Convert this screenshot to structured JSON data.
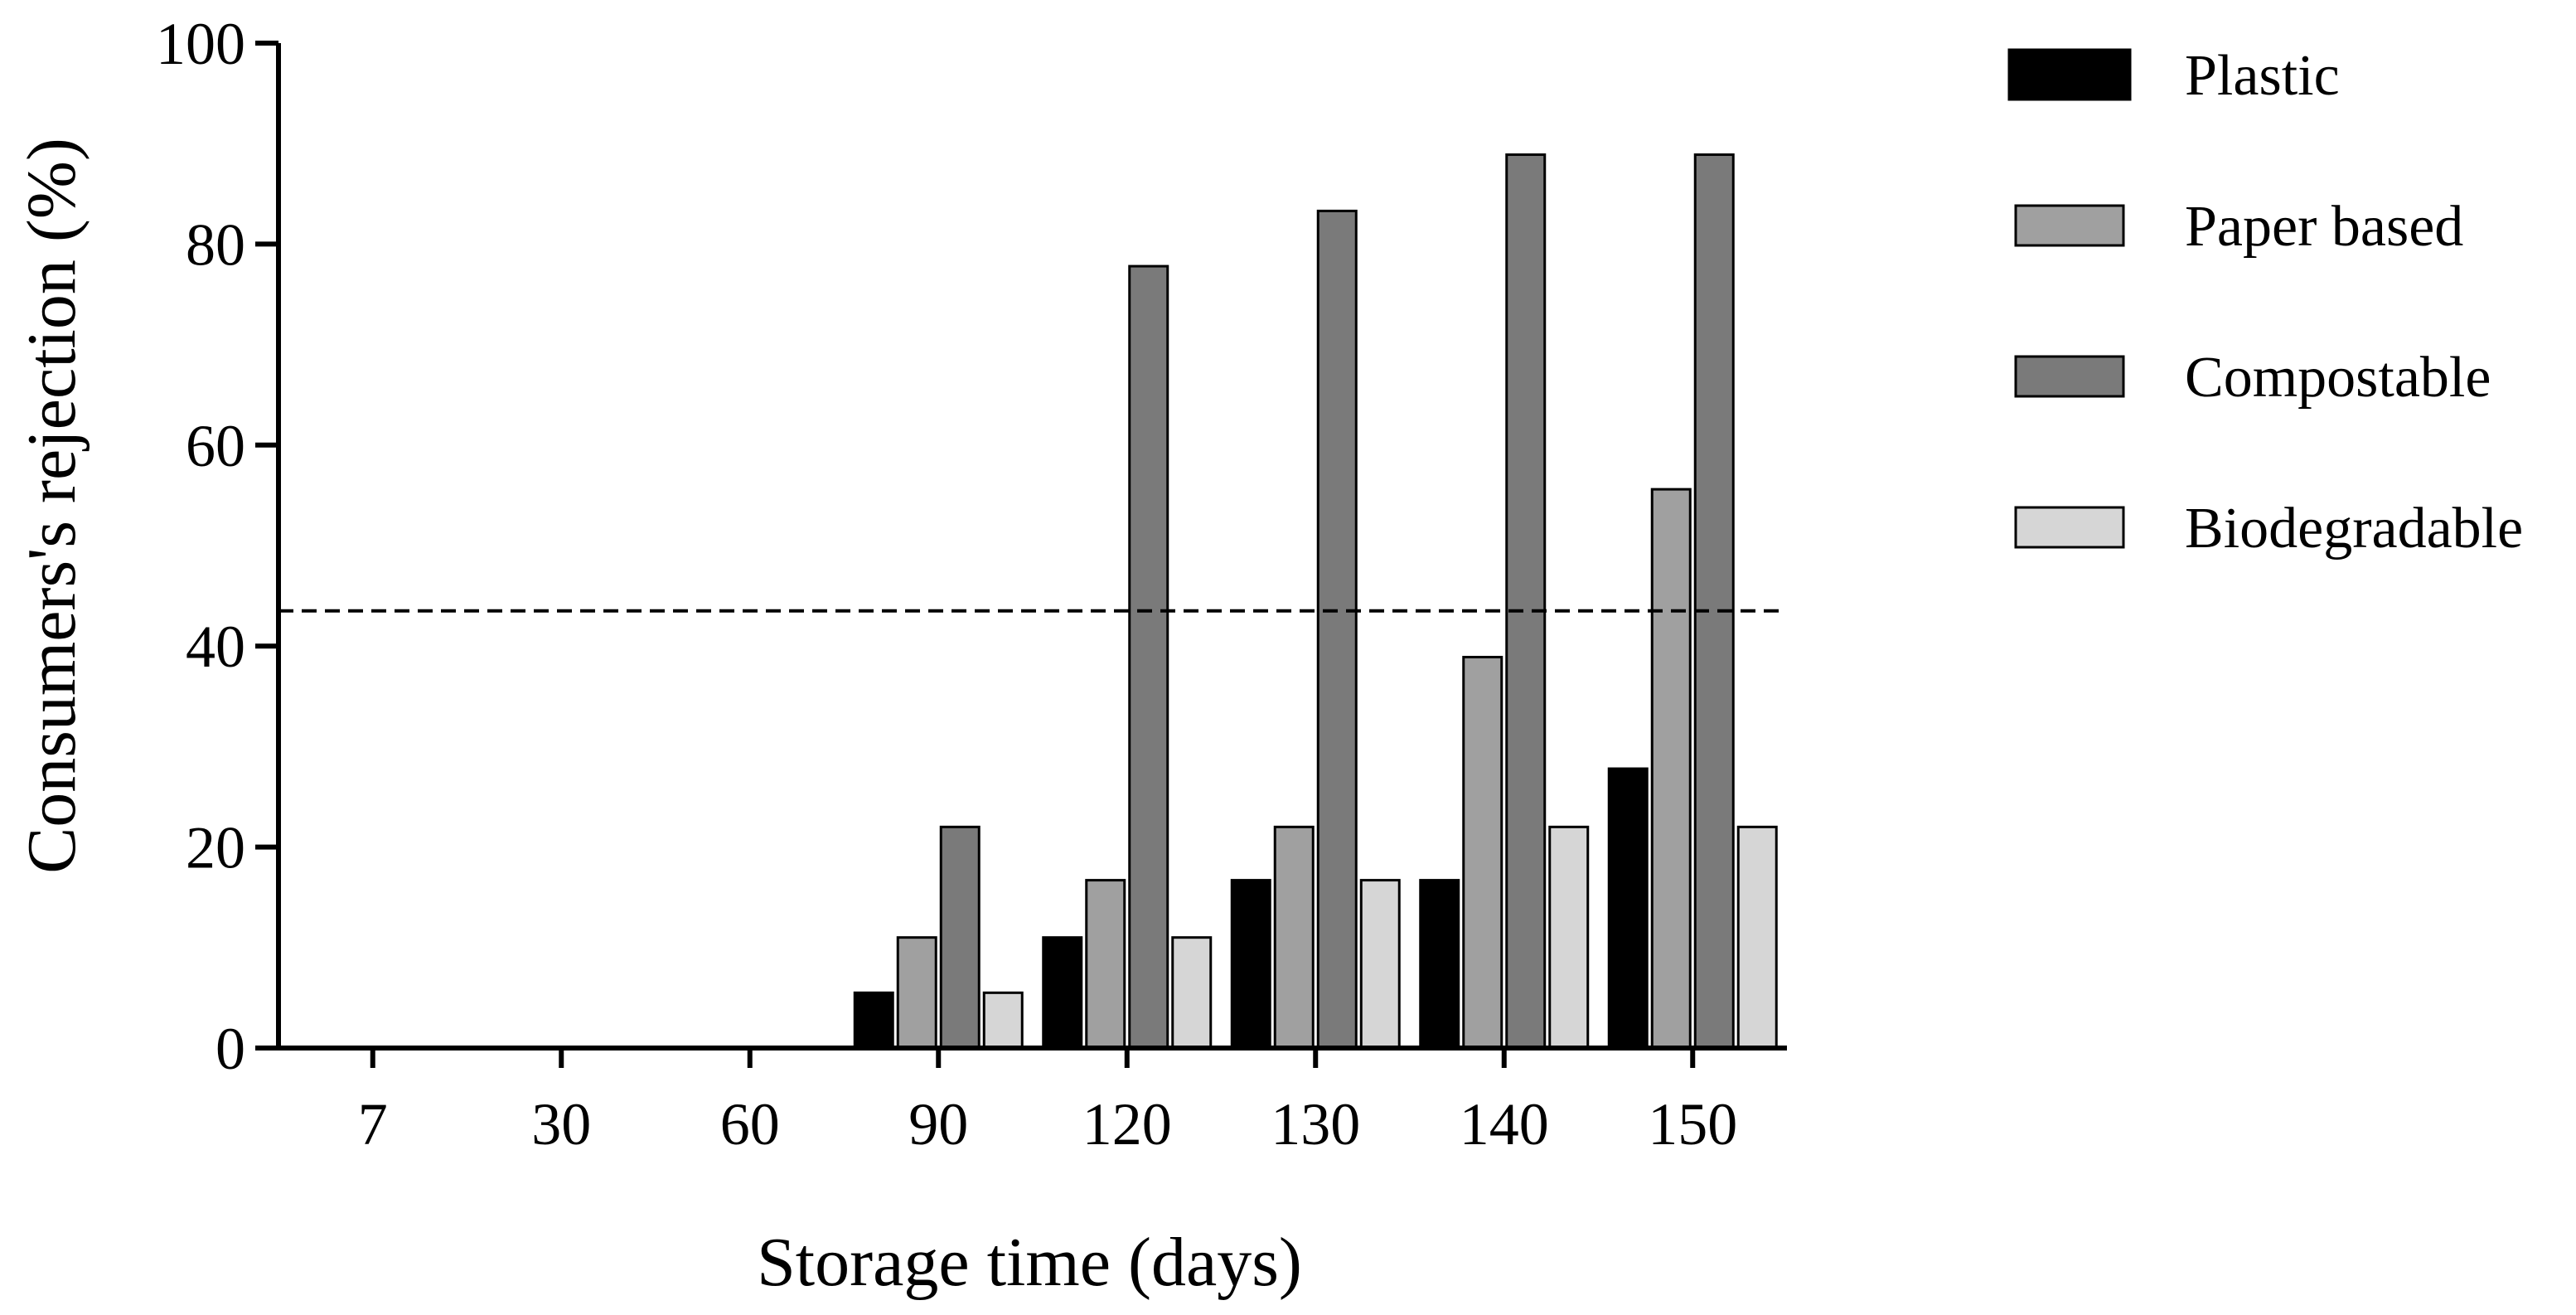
{
  "chart_data": {
    "type": "bar",
    "title": "",
    "xlabel": "Storage time (days)",
    "ylabel": "Consumers's rejection (%)",
    "ylim": [
      0,
      100
    ],
    "yticks": [
      0,
      20,
      40,
      60,
      80,
      100
    ],
    "categories": [
      "7",
      "30",
      "60",
      "90",
      "120",
      "130",
      "140",
      "150"
    ],
    "series": [
      {
        "name": "Plastic",
        "color": "#000000",
        "values": [
          0,
          0,
          0,
          5.5,
          11,
          16.7,
          16.7,
          27.8
        ]
      },
      {
        "name": "Paper based",
        "color": "#a0a0a0",
        "values": [
          0,
          0,
          0,
          11,
          16.7,
          22,
          38.9,
          55.6
        ]
      },
      {
        "name": "Compostable",
        "color": "#7a7a7a",
        "values": [
          0,
          0,
          0,
          22,
          77.8,
          83.3,
          88.9,
          88.9
        ]
      },
      {
        "name": "Biodegradable",
        "color": "#d6d6d6",
        "values": [
          0,
          0,
          0,
          5.5,
          11,
          16.7,
          22,
          22
        ]
      }
    ],
    "threshold": {
      "value": 43.5,
      "style": "dashed",
      "color": "#000000"
    },
    "grid": false,
    "legend": "right"
  }
}
